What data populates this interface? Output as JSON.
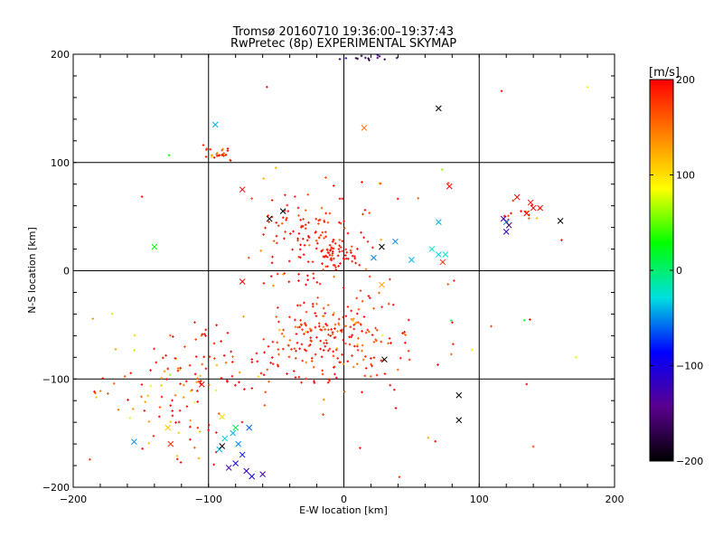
{
  "chart_data": {
    "type": "scatter",
    "title": "Tromsø 20160710 19:36:00–19:37:43",
    "subtitle": "RwPretec (8p) EXPERIMENTAL SKYMAP",
    "xlabel": "E-W location [km]",
    "ylabel": "N-S location [km]",
    "xlim": [
      -200,
      200
    ],
    "ylim": [
      -200,
      200
    ],
    "xticks": [
      "−200",
      "−100",
      "0",
      "100",
      "200"
    ],
    "yticks": [
      "−200",
      "−100",
      "0",
      "100",
      "200"
    ],
    "grid": true,
    "colorbar": {
      "label": "[m/s]",
      "range": [
        -200,
        200
      ],
      "ticks": [
        "200",
        "100",
        "0",
        "−100",
        "−200"
      ],
      "colors": [
        "#000000",
        "#5a0090",
        "#0000ff",
        "#00e0e0",
        "#00ff00",
        "#ffff00",
        "#ff8000",
        "#ff0000"
      ]
    },
    "markers": {
      "dot": "small detection",
      "cross": "x-marked detection"
    },
    "clusters": [
      {
        "cx": -10,
        "cy": -65,
        "sx": 28,
        "sy": 22,
        "n": 230,
        "vmean": 185,
        "vsd": 25
      },
      {
        "cx": -20,
        "cy": 30,
        "sx": 22,
        "sy": 25,
        "n": 140,
        "vmean": 190,
        "vsd": 20
      },
      {
        "cx": -5,
        "cy": 12,
        "sx": 8,
        "sy": 6,
        "n": 40,
        "vmean": 195,
        "vsd": 10
      },
      {
        "cx": -120,
        "cy": -120,
        "sx": 25,
        "sy": 25,
        "n": 90,
        "vmean": 180,
        "vsd": 45
      },
      {
        "cx": -90,
        "cy": -85,
        "sx": 20,
        "sy": 15,
        "n": 40,
        "vmean": 190,
        "vsd": 20
      },
      {
        "cx": -95,
        "cy": 108,
        "sx": 5,
        "sy": 4,
        "n": 25,
        "vmean": 170,
        "vsd": 35
      },
      {
        "cx": 130,
        "cy": 53,
        "sx": 10,
        "sy": 7,
        "n": 14,
        "vmean": 170,
        "vsd": 60
      },
      {
        "cx": 20,
        "cy": 198,
        "sx": 10,
        "sy": 2,
        "n": 14,
        "vmean": -150,
        "vsd": 30
      },
      {
        "cx": 0,
        "cy": 0,
        "sx": 110,
        "sy": 110,
        "n": 60,
        "vmean": 180,
        "vsd": 60
      }
    ],
    "crosses": [
      {
        "x": -72,
        "y": -185,
        "v": -120
      },
      {
        "x": -80,
        "y": -178,
        "v": -110
      },
      {
        "x": -68,
        "y": -190,
        "v": -100
      },
      {
        "x": -85,
        "y": -182,
        "v": -130
      },
      {
        "x": -60,
        "y": -188,
        "v": -125
      },
      {
        "x": -75,
        "y": -170,
        "v": -80
      },
      {
        "x": -78,
        "y": -160,
        "v": -50
      },
      {
        "x": -82,
        "y": -150,
        "v": -40
      },
      {
        "x": -88,
        "y": -155,
        "v": -30
      },
      {
        "x": -80,
        "y": -145,
        "v": 10
      },
      {
        "x": -70,
        "y": -145,
        "v": -60
      },
      {
        "x": -155,
        "y": -158,
        "v": -50
      },
      {
        "x": -92,
        "y": -165,
        "v": -40
      },
      {
        "x": -90,
        "y": -135,
        "v": 100
      },
      {
        "x": -130,
        "y": -145,
        "v": 110
      },
      {
        "x": -128,
        "y": -160,
        "v": 180
      },
      {
        "x": -105,
        "y": -105,
        "v": 200
      },
      {
        "x": -140,
        "y": 22,
        "v": 30
      },
      {
        "x": -95,
        "y": 135,
        "v": -40
      },
      {
        "x": 15,
        "y": 132,
        "v": 150
      },
      {
        "x": 70,
        "y": 150,
        "v": -200
      },
      {
        "x": 85,
        "y": -115,
        "v": -200
      },
      {
        "x": 85,
        "y": -138,
        "v": -200
      },
      {
        "x": 28,
        "y": -13,
        "v": 130
      },
      {
        "x": 38,
        "y": 27,
        "v": -50
      },
      {
        "x": 70,
        "y": 45,
        "v": -40
      },
      {
        "x": 70,
        "y": 15,
        "v": -30
      },
      {
        "x": 75,
        "y": 15,
        "v": -25
      },
      {
        "x": 65,
        "y": 20,
        "v": -20
      },
      {
        "x": 73,
        "y": 8,
        "v": 180
      },
      {
        "x": 28,
        "y": 22,
        "v": -200
      },
      {
        "x": 22,
        "y": 12,
        "v": -50
      },
      {
        "x": 50,
        "y": 10,
        "v": -40
      },
      {
        "x": -45,
        "y": 55,
        "v": -200
      },
      {
        "x": -55,
        "y": 48,
        "v": -200
      },
      {
        "x": -75,
        "y": 75,
        "v": 200
      },
      {
        "x": -75,
        "y": -10,
        "v": 200
      },
      {
        "x": 78,
        "y": 78,
        "v": 200
      },
      {
        "x": 120,
        "y": 45,
        "v": -50
      },
      {
        "x": 118,
        "y": 48,
        "v": -130
      },
      {
        "x": 122,
        "y": 42,
        "v": -160
      },
      {
        "x": 120,
        "y": 36,
        "v": -120
      },
      {
        "x": 160,
        "y": 46,
        "v": -200
      },
      {
        "x": 135,
        "y": 53,
        "v": 200
      },
      {
        "x": 138,
        "y": 63,
        "v": 200
      },
      {
        "x": 140,
        "y": 58,
        "v": 200
      },
      {
        "x": 145,
        "y": 58,
        "v": 200
      },
      {
        "x": 128,
        "y": 68,
        "v": 200
      },
      {
        "x": 30,
        "y": -82,
        "v": -200
      },
      {
        "x": -90,
        "y": -162,
        "v": -200
      }
    ]
  }
}
